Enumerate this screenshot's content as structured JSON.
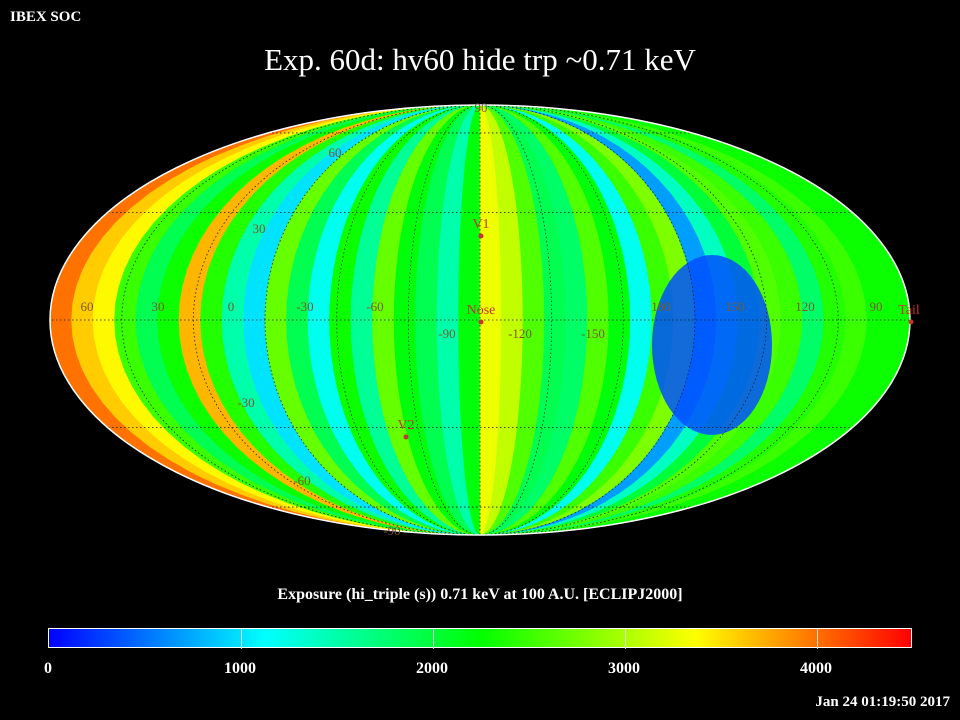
{
  "header": {
    "source": "IBEX SOC",
    "title": "Exp.   60d: hv60 hide trp ~0.71 keV"
  },
  "map": {
    "projection": "mollweide",
    "frame": "ECLIPJ2000",
    "lat_labels_left": [
      "60",
      "30",
      "-30",
      "-60"
    ],
    "lat_labels_pole": [
      "90",
      "-90"
    ],
    "lon_labels": [
      "60",
      "30",
      "0",
      "-30",
      "-60",
      "-90",
      "-120",
      "-150",
      "180",
      "150",
      "120",
      "90"
    ],
    "markers": [
      {
        "name": "V1",
        "color": "#c83232"
      },
      {
        "name": "Nose",
        "color": "#c83232"
      },
      {
        "name": "V2",
        "color": "#c83232"
      },
      {
        "name": "Tail",
        "color": "#c83232"
      }
    ],
    "grid_line_color": "#1a1a1a",
    "label_color": "#7a5a2a"
  },
  "colorbar": {
    "caption": "Exposure (hi_triple (s))  0.71 keV at 100 A.U. [ECLIPJ2000]",
    "min": 0,
    "max": 4500,
    "tick_labels": [
      "0",
      "1000",
      "2000",
      "3000",
      "4000"
    ],
    "tick_values": [
      0,
      1000,
      2000,
      3000,
      4000
    ],
    "colors": [
      "#0000ff",
      "#0080ff",
      "#00ffff",
      "#00ff80",
      "#00ff00",
      "#80ff00",
      "#ffff00",
      "#ff8000",
      "#ff0000"
    ]
  },
  "footer": {
    "timestamp": "Jan 24 01:19:50 2017"
  }
}
